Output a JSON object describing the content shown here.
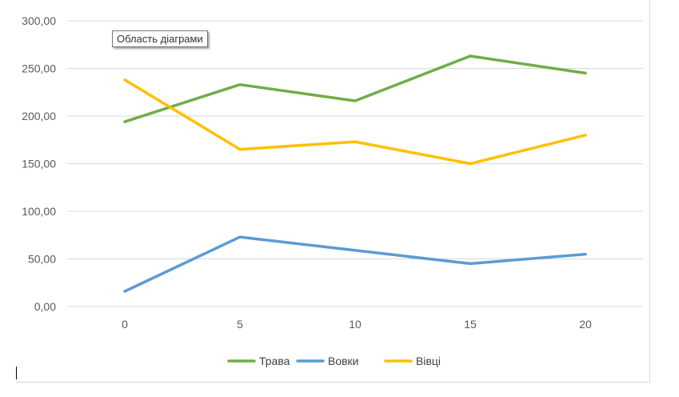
{
  "tooltip": "Область діаграми",
  "chart_data": {
    "type": "line",
    "title": "",
    "xlabel": "",
    "ylabel": "",
    "x": [
      "0",
      "5",
      "10",
      "15",
      "20"
    ],
    "ylim": [
      0,
      300
    ],
    "y_ticks": [
      "0,00",
      "50,00",
      "100,00",
      "150,00",
      "200,00",
      "250,00",
      "300,00"
    ],
    "grid": true,
    "legend_position": "bottom",
    "series": [
      {
        "name": "Трава",
        "color": "#70ad47",
        "values": [
          194,
          233,
          216,
          263,
          245
        ]
      },
      {
        "name": "Вовки",
        "color": "#5b9bd5",
        "values": [
          16,
          73,
          59,
          45,
          55
        ]
      },
      {
        "name": "Вівці",
        "color": "#ffc000",
        "values": [
          238,
          165,
          173,
          150,
          180
        ]
      }
    ]
  }
}
